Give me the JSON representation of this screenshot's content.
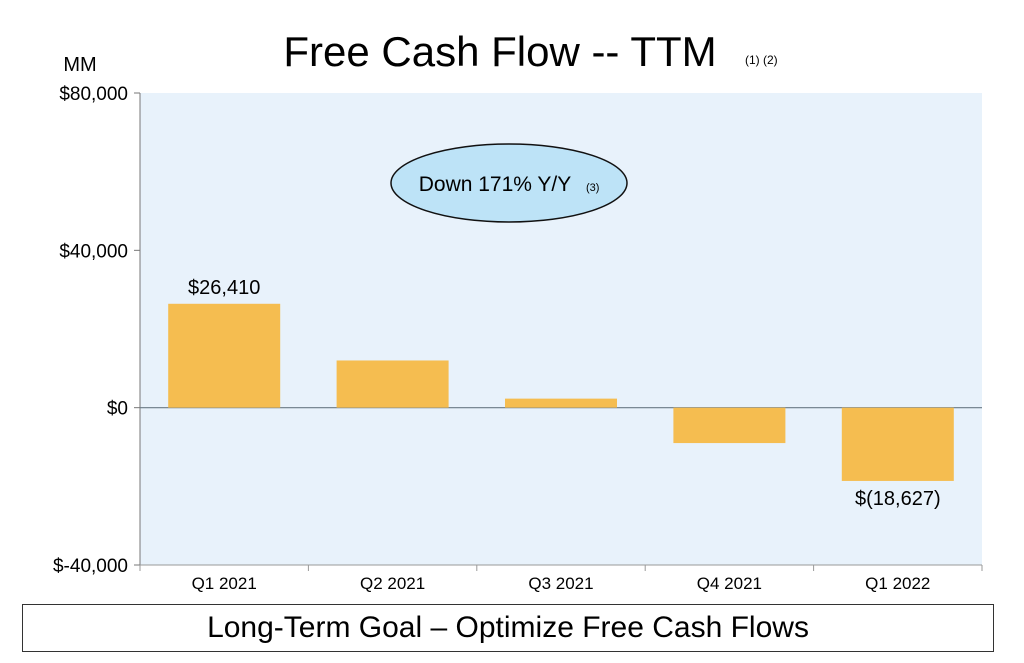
{
  "chart_data": {
    "type": "bar",
    "title": "Free Cash Flow -- TTM",
    "title_footnote": "(1) (2)",
    "unit_label": "MM",
    "categories": [
      "Q1 2021",
      "Q2 2021",
      "Q3 2021",
      "Q4 2021",
      "Q1 2022"
    ],
    "values": [
      26410,
      12000,
      2300,
      -9000,
      -18627
    ],
    "data_labels": [
      "$26,410",
      "",
      "",
      "",
      "$(18,627)"
    ],
    "ylim": [
      -40000,
      80000
    ],
    "yticks": [
      -40000,
      0,
      40000,
      80000
    ],
    "ytick_labels": [
      "$-40,000",
      "$0",
      "$40,000",
      "$80,000"
    ],
    "annotation": {
      "text": "Down 171% Y/Y",
      "footnote": "(3)"
    },
    "bar_color": "#f5bd50",
    "plot_background": "#e8f2fb",
    "annotation_fill": "#bde3f7"
  },
  "footer": {
    "text": "Long-Term Goal – Optimize Free Cash Flows"
  }
}
